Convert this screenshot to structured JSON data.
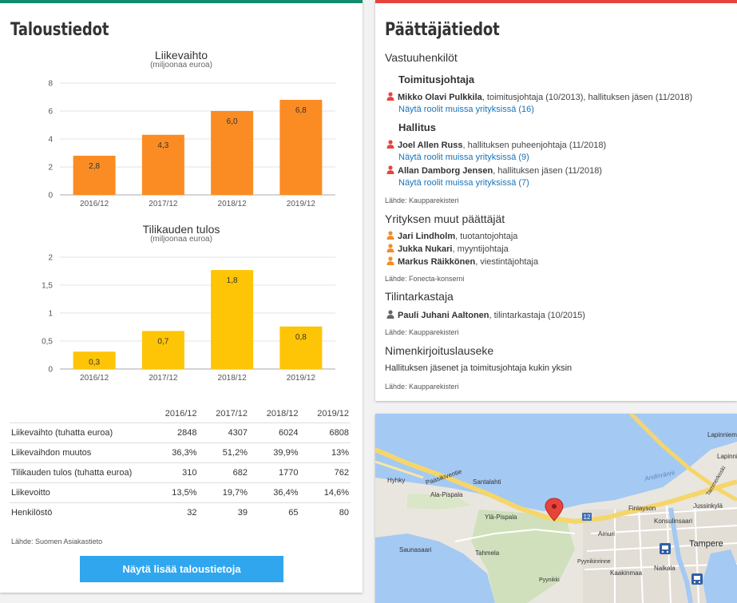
{
  "finance": {
    "title": "Taloustiedot",
    "charts": {
      "revenue": {
        "title": "Liikevaihto",
        "subtitle": "(miljoonaa euroa)"
      },
      "profit": {
        "title": "Tilikauden tulos",
        "subtitle": "(miljoonaa euroa)"
      }
    },
    "table": {
      "years": [
        "2016/12",
        "2017/12",
        "2018/12",
        "2019/12"
      ],
      "rows": [
        {
          "label": "Liikevaihto (tuhatta euroa)",
          "values": [
            "2848",
            "4307",
            "6024",
            "6808"
          ]
        },
        {
          "label": "Liikevaihdon muutos",
          "values": [
            "36,3%",
            "51,2%",
            "39,9%",
            "13%"
          ]
        },
        {
          "label": "Tilikauden tulos (tuhatta euroa)",
          "values": [
            "310",
            "682",
            "1770",
            "762"
          ]
        },
        {
          "label": "Liikevoitto",
          "values": [
            "13,5%",
            "19,7%",
            "36,4%",
            "14,6%"
          ]
        },
        {
          "label": "Henkilöstö",
          "values": [
            "32",
            "39",
            "65",
            "80"
          ]
        }
      ]
    },
    "source": "Lähde: Suomen Asiakastieto",
    "more_button": "Näytä lisää taloustietoja"
  },
  "chart_data": [
    {
      "type": "bar",
      "title": "Liikevaihto",
      "subtitle": "(miljoonaa euroa)",
      "categories": [
        "2016/12",
        "2017/12",
        "2018/12",
        "2019/12"
      ],
      "values": [
        2.8,
        4.3,
        6.0,
        6.8
      ],
      "value_labels": [
        "2,8",
        "4,3",
        "6,0",
        "6,8"
      ],
      "yticks": [
        "0",
        "2",
        "4",
        "6",
        "8"
      ],
      "ylim": [
        0,
        8
      ],
      "color": "#fb8c23",
      "grid": true
    },
    {
      "type": "bar",
      "title": "Tilikauden tulos",
      "subtitle": "(miljoonaa euroa)",
      "categories": [
        "2016/12",
        "2017/12",
        "2018/12",
        "2019/12"
      ],
      "values": [
        0.31,
        0.68,
        1.77,
        0.76
      ],
      "value_labels": [
        "0,3",
        "0,7",
        "1,8",
        "0,8"
      ],
      "yticks": [
        "0",
        "0,5",
        "1",
        "1,5",
        "2"
      ],
      "ylim": [
        0,
        2
      ],
      "color": "#fec406",
      "grid": true
    }
  ],
  "decisions": {
    "title": "Päättäjätiedot",
    "responsible": {
      "heading": "Vastuuhenkilöt",
      "ceo_heading": "Toimitusjohtaja",
      "ceo": {
        "name": "Mikko Olavi Pulkkila",
        "role": ", toimitusjohtaja (10/2013), hallituksen jäsen (11/2018)",
        "link": "Näytä roolit muissa yrityksissä (16)"
      },
      "board_heading": "Hallitus",
      "board": [
        {
          "name": "Joel Allen Russ",
          "role": ", hallituksen puheenjohtaja (11/2018)",
          "link": "Näytä roolit muissa yrityksissä (9)"
        },
        {
          "name": "Allan Damborg Jensen",
          "role": ", hallituksen jäsen (11/2018)",
          "link": "Näytä roolit muissa yrityksissä (7)"
        }
      ],
      "source": "Lähde: Kaupparekisteri"
    },
    "others": {
      "heading": "Yrityksen muut päättäjät",
      "people": [
        {
          "name": "Jari Lindholm",
          "role": ", tuotantojohtaja"
        },
        {
          "name": "Jukka Nukari",
          "role": ", myyntijohtaja"
        },
        {
          "name": "Markus Räikkönen",
          "role": ", viestintäjohtaja"
        }
      ],
      "source": "Lähde: Fonecta-konserni"
    },
    "auditor": {
      "heading": "Tilintarkastaja",
      "name": "Pauli Juhani Aaltonen",
      "role": ", tilintarkastaja (10/2015)",
      "source": "Lähde: Kaupparekisteri"
    },
    "signature": {
      "heading": "Nimenkirjoituslauseke",
      "text": "Hallituksen jäsenet ja toimitusjohtaja kukin yksin",
      "source": "Lähde: Kaupparekisteri"
    },
    "icon_colors": {
      "responsible": "#e8433b",
      "others": "#f28c28",
      "auditor": "#666666"
    }
  },
  "map": {
    "labels": {
      "paasikiventie": "Paasikiventie",
      "hyhky": "Hyhky",
      "santalahti": "Santalahti",
      "ala_pispala": "Ala-Pispala",
      "yla_pispala": "Ylä-Pispala",
      "saunasaari": "Saunasaari",
      "tahmela": "Tahmela",
      "pyynikki": "Pyynikki",
      "pyynikinrinne": "Pyynikinrinne",
      "amuri": "Amuri",
      "kaakinmaa": "Kaakinmaa",
      "nalkala": "Nalkala",
      "tampere": "Tampere",
      "finlayson": "Finlayson",
      "konsulinsaari": "Konsulinsaari",
      "jussinkyla": "Jussinkylä",
      "lapinniemi": "Lapinniemi",
      "lapinniemi_short": "Lapinni",
      "tammerkoski": "Tammerkoski",
      "andinranni": "Andinränni",
      "road_number": "12"
    },
    "marker_icon": "map-pin-icon",
    "transit_icon": "bus-icon"
  }
}
